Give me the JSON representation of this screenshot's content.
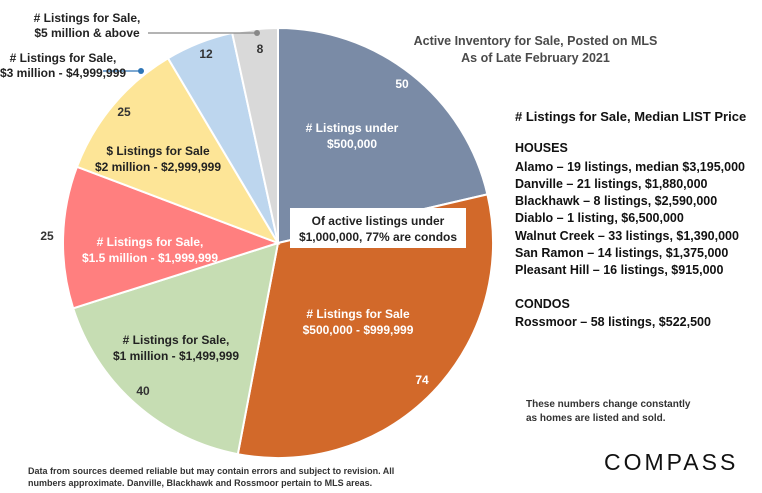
{
  "chart_data": {
    "type": "pie",
    "title": "Active Inventory for Sale, Posted on MLS",
    "subtitle": "As of Late February 2021",
    "slices": [
      {
        "name": "# Listings under $500,000",
        "line1": "# Listings under",
        "line2": "$500,000",
        "value": 50,
        "value_label": "50",
        "color": "#7a8ba6"
      },
      {
        "name": "# Listings for Sale $500,000 - $999,999",
        "line1": "# Listings for Sale",
        "line2": "$500,000 - $999,999",
        "value": 74,
        "value_label": "74",
        "color": "#d2692a"
      },
      {
        "name": "# Listings for Sale, $1 million - $1,499,999",
        "line1": "# Listings for Sale,",
        "line2": "$1 million - $1,499,999",
        "value": 40,
        "value_label": "40",
        "color": "#c6ddb3"
      },
      {
        "name": "# Listings for Sale, $1.5 million - $1,999,999",
        "line1": "# Listings for Sale,",
        "line2": "$1.5 million - $1,999,999",
        "value": 25,
        "value_label": "25",
        "color": "#ff7f7f"
      },
      {
        "name": "$ Listings for Sale $2 million - $2,999,999",
        "line1": "$ Listings for Sale",
        "line2": "$2 million - $2,999,999",
        "value": 25,
        "value_label": "25",
        "color": "#fde597"
      },
      {
        "name": "# Listings for Sale, $3 million - $4,999,999",
        "line1": "# Listings for Sale,",
        "line2": "$3 million - $4,999,999",
        "value": 12,
        "value_label": "12",
        "color": "#bdd6ee"
      },
      {
        "name": "# Listings for Sale, $5 million & above",
        "line1": "# Listings for Sale,",
        "line2": "$5 million & above",
        "value": 8,
        "value_label": "8",
        "color": "#d9d9d9"
      }
    ],
    "callout": {
      "line1": "Of active listings under",
      "line2": "$1,000,000, 77% are condos"
    }
  },
  "median": {
    "heading": "# Listings for Sale, Median LIST Price",
    "houses_heading": "HOUSES",
    "houses": [
      "Alamo – 19 listings, median $3,195,000",
      "Danville – 21 listings, $1,880,000",
      "Blackhawk – 8 listings, $2,590,000",
      "Diablo – 1 listing, $6,500,000",
      "Walnut Creek – 33 listings, $1,390,000",
      "San Ramon – 14 listings, $1,375,000",
      "Pleasant Hill – 16 listings, $915,000"
    ],
    "condos_heading": "CONDOS",
    "condos": [
      "Rossmoor – 58 listings, $522,500"
    ]
  },
  "note": {
    "line1": "These numbers change constantly",
    "line2": "as homes are listed and sold."
  },
  "footer": {
    "line1": "Data from sources deemed reliable but may contain errors and subject to revision. All",
    "line2": "numbers approximate.  Danville, Blackhawk and Rossmoor pertain to MLS areas."
  },
  "brand": {
    "logo": "COMPASS"
  }
}
